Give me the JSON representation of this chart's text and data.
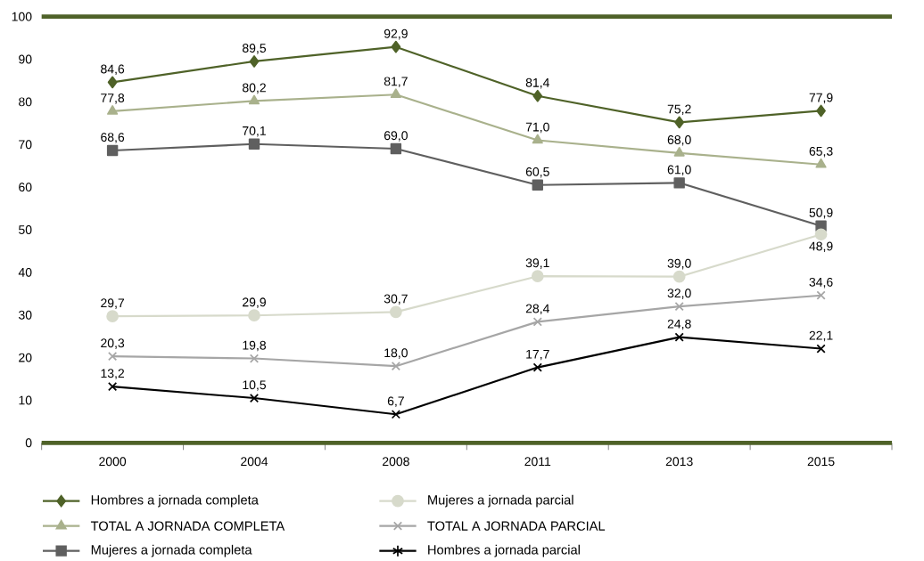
{
  "chart_data": {
    "type": "line",
    "categories": [
      "2000",
      "2004",
      "2008",
      "2011",
      "2013",
      "2015"
    ],
    "series": [
      {
        "name": "Hombres a jornada completa",
        "color": "#4f6228",
        "marker": "diamond",
        "values": [
          84.6,
          89.5,
          92.9,
          81.4,
          75.2,
          77.9
        ],
        "value_labels": [
          "84,6",
          "89,5",
          "92,9",
          "81,4",
          "75,2",
          "77,9"
        ]
      },
      {
        "name": "TOTAL A JORNADA COMPLETA",
        "color": "#a9b18c",
        "marker": "triangle",
        "values": [
          77.8,
          80.2,
          81.7,
          71.0,
          68.0,
          65.3
        ],
        "value_labels": [
          "77,8",
          "80,2",
          "81,7",
          "71,0",
          "68,0",
          "65,3"
        ]
      },
      {
        "name": "Mujeres a jornada completa",
        "color": "#5f5f5f",
        "marker": "square",
        "values": [
          68.6,
          70.1,
          69.0,
          60.5,
          61.0,
          50.9
        ],
        "value_labels": [
          "68,6",
          "70,1",
          "69,0",
          "60,5",
          "61,0",
          "50,9"
        ]
      },
      {
        "name": "Mujeres a jornada parcial",
        "color": "#d7dacb",
        "marker": "circle",
        "values": [
          29.7,
          29.9,
          30.7,
          39.1,
          39.0,
          48.9
        ],
        "value_labels": [
          "29,7",
          "29,9",
          "30,7",
          "39,1",
          "39,0",
          "48,9"
        ]
      },
      {
        "name": "TOTAL A JORNADA PARCIAL",
        "color": "#a6a6a6",
        "marker": "cross",
        "values": [
          20.3,
          19.8,
          18.0,
          28.4,
          32.0,
          34.6
        ],
        "value_labels": [
          "20,3",
          "19,8",
          "18,0",
          "28,4",
          "32,0",
          "34,6"
        ]
      },
      {
        "name": "Hombres a jornada parcial",
        "color": "#000000",
        "marker": "cross",
        "values": [
          13.2,
          10.5,
          6.7,
          17.7,
          24.8,
          22.1
        ],
        "value_labels": [
          "13,2",
          "10,5",
          "6,7",
          "17,7",
          "24,8",
          "22,1"
        ]
      }
    ],
    "ylim": [
      0,
      100
    ],
    "yticks": [
      0,
      10,
      20,
      30,
      40,
      50,
      60,
      70,
      80,
      90,
      100
    ],
    "grid": false,
    "legend": "bottom",
    "line_style": "solid"
  }
}
